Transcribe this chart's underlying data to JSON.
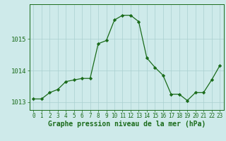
{
  "x": [
    0,
    1,
    2,
    3,
    4,
    5,
    6,
    7,
    8,
    9,
    10,
    11,
    12,
    13,
    14,
    15,
    16,
    17,
    18,
    19,
    20,
    21,
    22,
    23
  ],
  "y": [
    1013.1,
    1013.1,
    1013.3,
    1013.4,
    1013.65,
    1013.7,
    1013.75,
    1013.75,
    1014.85,
    1014.95,
    1015.6,
    1015.75,
    1015.75,
    1015.55,
    1014.4,
    1014.1,
    1013.85,
    1013.25,
    1013.25,
    1013.05,
    1013.3,
    1013.3,
    1013.7,
    1014.15
  ],
  "xlabel": "Graphe pression niveau de la mer (hPa)",
  "ylim": [
    1012.75,
    1016.1
  ],
  "xlim": [
    -0.5,
    23.5
  ],
  "yticks": [
    1013,
    1014,
    1015
  ],
  "xticks": [
    0,
    1,
    2,
    3,
    4,
    5,
    6,
    7,
    8,
    9,
    10,
    11,
    12,
    13,
    14,
    15,
    16,
    17,
    18,
    19,
    20,
    21,
    22,
    23
  ],
  "line_color": "#1a6b1a",
  "marker_color": "#1a6b1a",
  "bg_color": "#ceeaea",
  "grid_color": "#aacfcf",
  "tick_color": "#1a6b1a",
  "label_color": "#1a6b1a",
  "xlabel_fontsize": 7,
  "ytick_fontsize": 6.5,
  "xtick_fontsize": 5.5
}
